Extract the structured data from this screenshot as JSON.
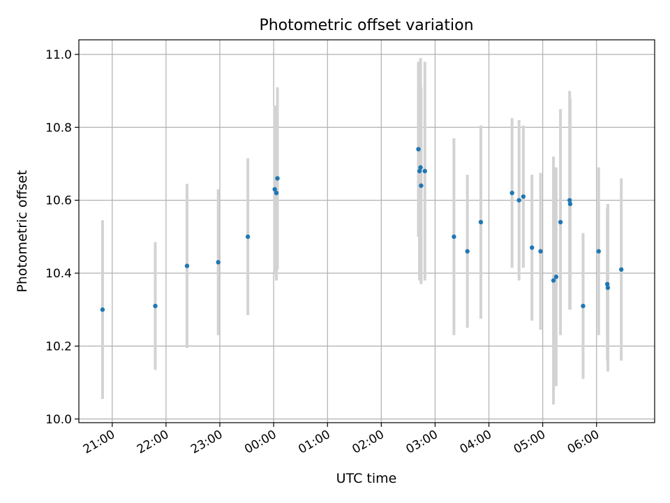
{
  "chart_data": {
    "type": "scatter",
    "title": "Photometric offset variation",
    "xlabel": "UTC time",
    "ylabel": "Photometric offset",
    "x_tick_labels": [
      "21:00",
      "22:00",
      "23:00",
      "00:00",
      "01:00",
      "02:00",
      "03:00",
      "04:00",
      "05:00",
      "06:00"
    ],
    "y_tick_labels": [
      "10.0",
      "10.2",
      "10.4",
      "10.6",
      "10.8",
      "11.0"
    ],
    "x_range_hours": [
      20.38,
      31.08
    ],
    "ylim": [
      9.99,
      11.04
    ],
    "grid": true,
    "colors": {
      "point": "#1f77b4",
      "errorbar": "#d3d3d3",
      "grid": "#b0b0b0"
    },
    "points": [
      {
        "t": 20.82,
        "y": 10.3,
        "err": 0.245
      },
      {
        "t": 21.8,
        "y": 10.31,
        "err": 0.175
      },
      {
        "t": 22.39,
        "y": 10.42,
        "err": 0.225
      },
      {
        "t": 22.97,
        "y": 10.43,
        "err": 0.2
      },
      {
        "t": 23.52,
        "y": 10.5,
        "err": 0.215
      },
      {
        "t": 24.02,
        "y": 10.63,
        "err": 0.23
      },
      {
        "t": 24.05,
        "y": 10.62,
        "err": 0.24
      },
      {
        "t": 24.07,
        "y": 10.66,
        "err": 0.25
      },
      {
        "t": 26.69,
        "y": 10.74,
        "err": 0.24
      },
      {
        "t": 26.71,
        "y": 10.68,
        "err": 0.3
      },
      {
        "t": 26.73,
        "y": 10.69,
        "err": 0.3
      },
      {
        "t": 26.74,
        "y": 10.64,
        "err": 0.27
      },
      {
        "t": 26.81,
        "y": 10.68,
        "err": 0.3
      },
      {
        "t": 27.35,
        "y": 10.5,
        "err": 0.27
      },
      {
        "t": 27.6,
        "y": 10.46,
        "err": 0.21
      },
      {
        "t": 27.85,
        "y": 10.54,
        "err": 0.265
      },
      {
        "t": 28.43,
        "y": 10.62,
        "err": 0.205
      },
      {
        "t": 28.56,
        "y": 10.6,
        "err": 0.22
      },
      {
        "t": 28.64,
        "y": 10.61,
        "err": 0.195
      },
      {
        "t": 28.8,
        "y": 10.47,
        "err": 0.2
      },
      {
        "t": 28.96,
        "y": 10.46,
        "err": 0.215
      },
      {
        "t": 29.2,
        "y": 10.38,
        "err": 0.34
      },
      {
        "t": 29.25,
        "y": 10.39,
        "err": 0.3
      },
      {
        "t": 29.33,
        "y": 10.54,
        "err": 0.31
      },
      {
        "t": 29.5,
        "y": 10.6,
        "err": 0.3
      },
      {
        "t": 29.51,
        "y": 10.59,
        "err": 0.29
      },
      {
        "t": 29.75,
        "y": 10.31,
        "err": 0.2
      },
      {
        "t": 30.04,
        "y": 10.46,
        "err": 0.23
      },
      {
        "t": 30.2,
        "y": 10.37,
        "err": 0.21
      },
      {
        "t": 30.21,
        "y": 10.36,
        "err": 0.23
      },
      {
        "t": 30.46,
        "y": 10.41,
        "err": 0.25
      }
    ]
  }
}
